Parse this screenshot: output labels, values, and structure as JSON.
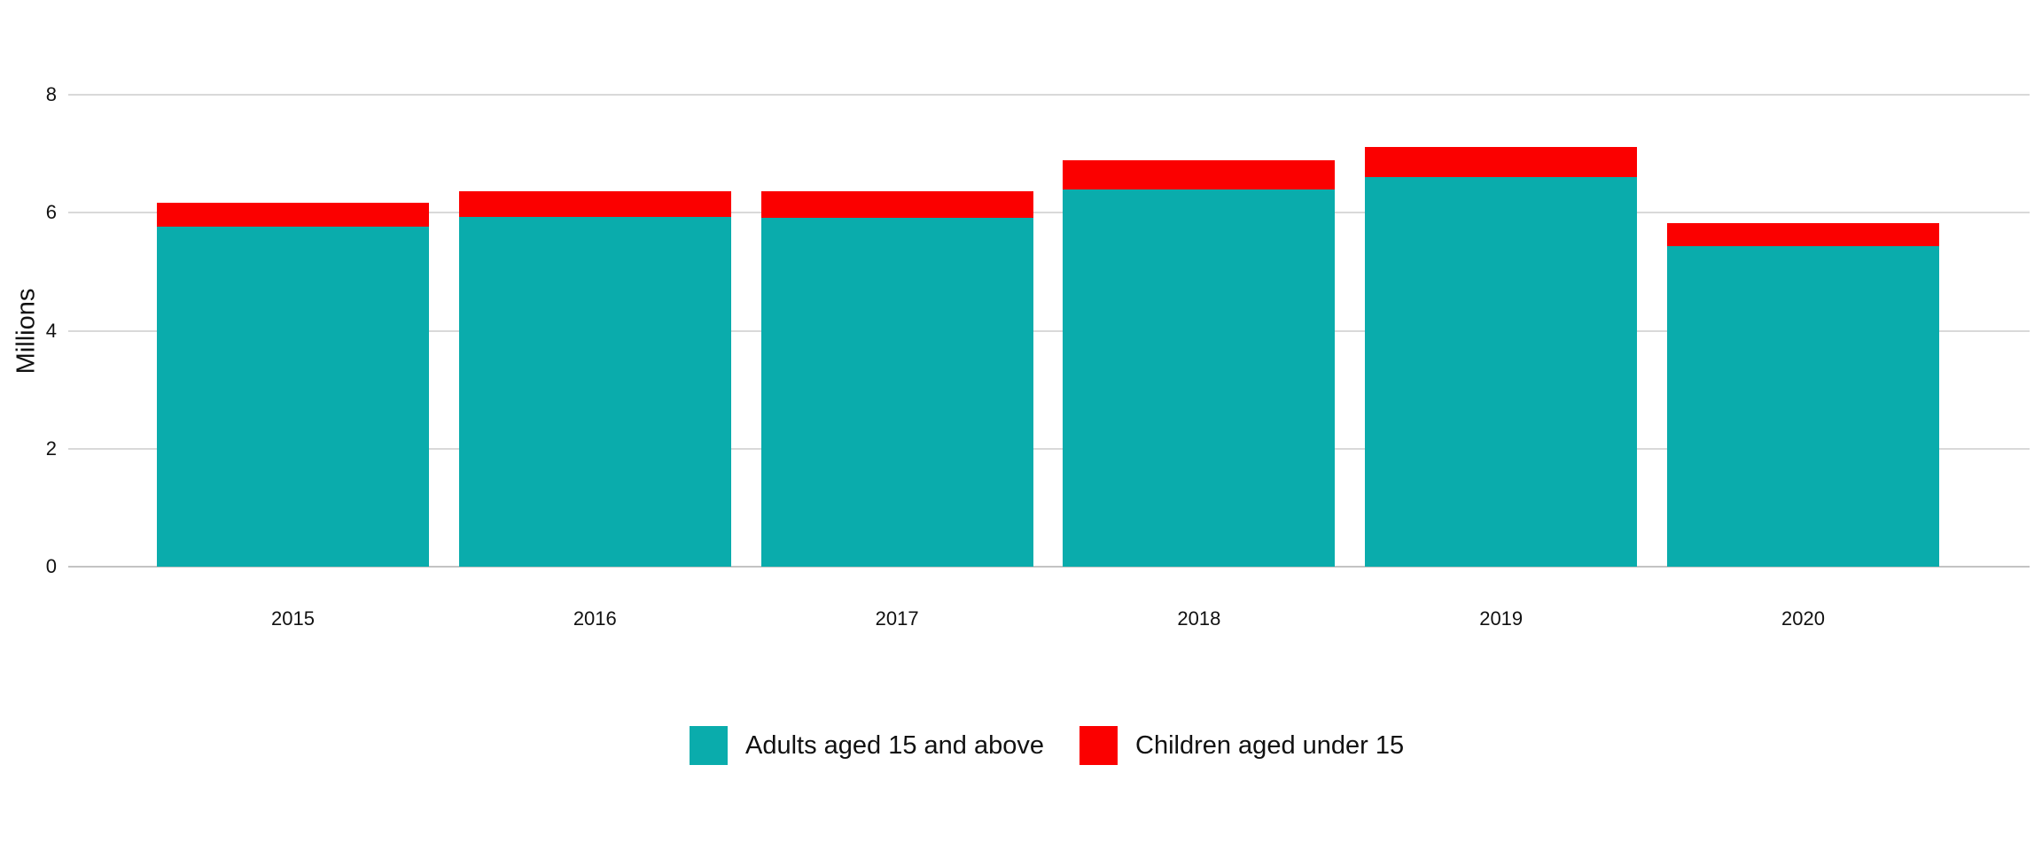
{
  "chart_data": {
    "type": "bar",
    "stacked": true,
    "title": "",
    "xlabel": "",
    "ylabel": "Millions",
    "ylim": [
      0,
      8
    ],
    "yticks": [
      0,
      2,
      4,
      6,
      8
    ],
    "grid": true,
    "legend_position": "bottom-center",
    "categories": [
      "2015",
      "2016",
      "2017",
      "2018",
      "2019",
      "2020"
    ],
    "series": [
      {
        "name": "Adults aged 15 and above",
        "color": "#0AACAC",
        "values": [
          5.77,
          5.93,
          5.91,
          6.4,
          6.6,
          5.44
        ]
      },
      {
        "name": "Children aged under 15",
        "color": "#FB0000",
        "values": [
          0.4,
          0.43,
          0.45,
          0.49,
          0.52,
          0.39
        ]
      }
    ]
  }
}
